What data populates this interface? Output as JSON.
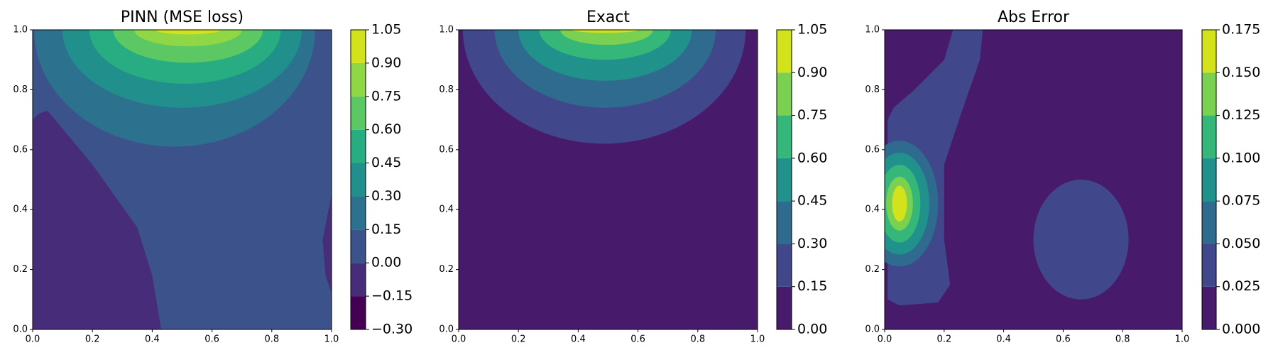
{
  "chart_data": [
    {
      "type": "contour",
      "title": "PINN (MSE loss)",
      "xlim": [
        0,
        1
      ],
      "ylim": [
        0,
        1
      ],
      "xticks": [
        {
          "value": 0,
          "label": "0.0"
        },
        {
          "value": 0.2,
          "label": "0.2"
        },
        {
          "value": 0.4,
          "label": "0.4"
        },
        {
          "value": 0.6,
          "label": "0.6"
        },
        {
          "value": 0.8,
          "label": "0.8"
        },
        {
          "value": 1,
          "label": "1.0"
        }
      ],
      "yticks": [
        {
          "value": 0,
          "label": "0.0"
        },
        {
          "value": 0.2,
          "label": "0.2"
        },
        {
          "value": 0.4,
          "label": "0.4"
        },
        {
          "value": 0.6,
          "label": "0.6"
        },
        {
          "value": 0.8,
          "label": "0.8"
        },
        {
          "value": 1,
          "label": "1.0"
        }
      ],
      "levels": [
        {
          "value": -0.3,
          "label": "−0.30"
        },
        {
          "value": -0.15,
          "label": "−0.15"
        },
        {
          "value": 0,
          "label": "0.00"
        },
        {
          "value": 0.15,
          "label": "0.15"
        },
        {
          "value": 0.3,
          "label": "0.30"
        },
        {
          "value": 0.45,
          "label": "0.45"
        },
        {
          "value": 0.6,
          "label": "0.60"
        },
        {
          "value": 0.75,
          "label": "0.75"
        },
        {
          "value": 0.9,
          "label": "0.90"
        },
        {
          "value": 1.05,
          "label": "1.05"
        }
      ],
      "colors": [
        "#440154",
        "#472c7a",
        "#3b528b",
        "#2c718e",
        "#21908d",
        "#27ad81",
        "#5cc863",
        "#8fd744",
        "#d2e21b"
      ]
    },
    {
      "type": "contour",
      "title": "Exact",
      "xlim": [
        0,
        1
      ],
      "ylim": [
        0,
        1
      ],
      "xticks": [
        {
          "value": 0,
          "label": "0.0"
        },
        {
          "value": 0.2,
          "label": "0.2"
        },
        {
          "value": 0.4,
          "label": "0.4"
        },
        {
          "value": 0.6,
          "label": "0.6"
        },
        {
          "value": 0.8,
          "label": "0.8"
        },
        {
          "value": 1,
          "label": "1.0"
        }
      ],
      "yticks": [
        {
          "value": 0,
          "label": "0.0"
        },
        {
          "value": 0.2,
          "label": "0.2"
        },
        {
          "value": 0.4,
          "label": "0.4"
        },
        {
          "value": 0.6,
          "label": "0.6"
        },
        {
          "value": 0.8,
          "label": "0.8"
        },
        {
          "value": 1,
          "label": "1.0"
        }
      ],
      "levels": [
        {
          "value": 0,
          "label": "0.00"
        },
        {
          "value": 0.15,
          "label": "0.15"
        },
        {
          "value": 0.3,
          "label": "0.30"
        },
        {
          "value": 0.45,
          "label": "0.45"
        },
        {
          "value": 0.6,
          "label": "0.60"
        },
        {
          "value": 0.75,
          "label": "0.75"
        },
        {
          "value": 0.9,
          "label": "0.90"
        },
        {
          "value": 1.05,
          "label": "1.05"
        }
      ],
      "colors": [
        "#481a6c",
        "#40478a",
        "#2f6b8e",
        "#21918c",
        "#35b779",
        "#7ad151",
        "#d2e21b"
      ]
    },
    {
      "type": "contour",
      "title": "Abs Error",
      "xlim": [
        0,
        1
      ],
      "ylim": [
        0,
        1
      ],
      "xticks": [
        {
          "value": 0,
          "label": "0.0"
        },
        {
          "value": 0.2,
          "label": "0.2"
        },
        {
          "value": 0.4,
          "label": "0.4"
        },
        {
          "value": 0.6,
          "label": "0.6"
        },
        {
          "value": 0.8,
          "label": "0.8"
        },
        {
          "value": 1,
          "label": "1.0"
        }
      ],
      "yticks": [
        {
          "value": 0,
          "label": "0.0"
        },
        {
          "value": 0.2,
          "label": "0.2"
        },
        {
          "value": 0.4,
          "label": "0.4"
        },
        {
          "value": 0.6,
          "label": "0.6"
        },
        {
          "value": 0.8,
          "label": "0.8"
        },
        {
          "value": 1,
          "label": "1.0"
        }
      ],
      "levels": [
        {
          "value": 0,
          "label": "0.000"
        },
        {
          "value": 0.025,
          "label": "0.025"
        },
        {
          "value": 0.05,
          "label": "0.050"
        },
        {
          "value": 0.075,
          "label": "0.075"
        },
        {
          "value": 0.1,
          "label": "0.100"
        },
        {
          "value": 0.125,
          "label": "0.125"
        },
        {
          "value": 0.15,
          "label": "0.150"
        },
        {
          "value": 0.175,
          "label": "0.175"
        }
      ],
      "colors": [
        "#481a6c",
        "#40478a",
        "#2f6b8e",
        "#21918c",
        "#35b779",
        "#7ad151",
        "#d2e21b"
      ]
    }
  ]
}
